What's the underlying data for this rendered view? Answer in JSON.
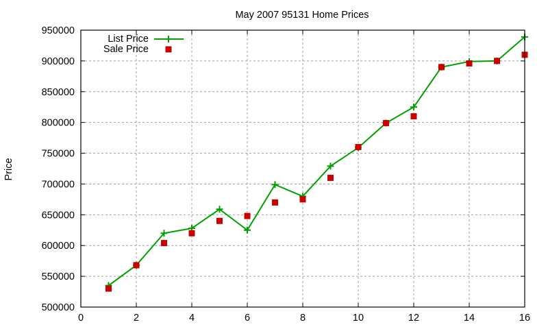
{
  "chart_data": {
    "type": "line",
    "title": "May 2007 95131 Home Prices",
    "xlabel": "",
    "ylabel": "Price",
    "xlim": [
      0,
      16
    ],
    "ylim": [
      500000,
      950000
    ],
    "xticks": [
      0,
      2,
      4,
      6,
      8,
      10,
      12,
      14,
      16
    ],
    "yticks": [
      500000,
      550000,
      600000,
      650000,
      700000,
      750000,
      800000,
      850000,
      900000,
      950000
    ],
    "grid": true,
    "legend_position": "top-left",
    "x": [
      1,
      2,
      3,
      4,
      5,
      6,
      7,
      8,
      9,
      10,
      11,
      12,
      13,
      14,
      15,
      16
    ],
    "series": [
      {
        "name": "List Price",
        "style": "linespoints",
        "marker": "plus",
        "color": "#00a000",
        "values": [
          535000,
          568000,
          620000,
          628000,
          659000,
          625000,
          699000,
          680000,
          729000,
          759000,
          799000,
          825000,
          890000,
          899000,
          900000,
          939000
        ]
      },
      {
        "name": "Sale Price",
        "style": "points",
        "marker": "square",
        "color": "#cc0000",
        "values": [
          530000,
          568000,
          604000,
          620000,
          640000,
          648000,
          670000,
          675000,
          710000,
          760000,
          799000,
          810000,
          890000,
          896000,
          900000,
          910000
        ]
      }
    ]
  }
}
